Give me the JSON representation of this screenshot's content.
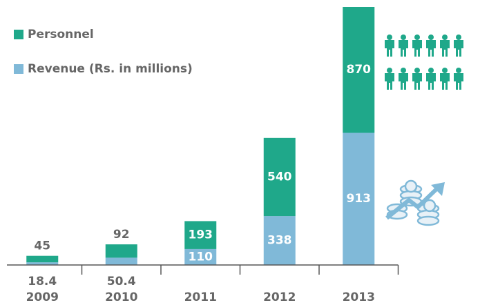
{
  "chart_data": {
    "type": "stacked_bar",
    "categories": [
      "2009",
      "2010",
      "2011",
      "2012",
      "2013"
    ],
    "series": [
      {
        "name": "Revenue (Rs. in millions)",
        "color": "#80b9d8",
        "values": [
          18.4,
          50.4,
          110,
          338,
          913
        ]
      },
      {
        "name": "Personnel",
        "color": "#1fa88a",
        "values": [
          45,
          92,
          193,
          540,
          870
        ]
      }
    ],
    "legend": "top-left"
  }
}
